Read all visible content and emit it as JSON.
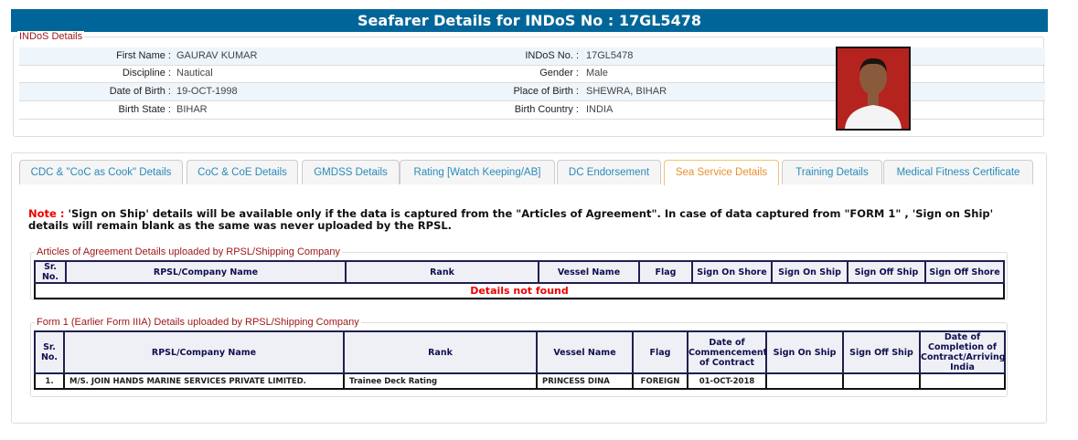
{
  "header": {
    "title": "Seafarer Details for INDoS No : 17GL5478"
  },
  "indos": {
    "legend": "INDoS Details",
    "rows": [
      {
        "l1": "First Name :",
        "v1": "GAURAV KUMAR",
        "l2": "INDoS No. :",
        "v2": "17GL5478"
      },
      {
        "l1": "Discipline :",
        "v1": "Nautical",
        "l2": "Gender :",
        "v2": "Male"
      },
      {
        "l1": "Date of Birth :",
        "v1": "19-OCT-1998",
        "l2": "Place of Birth :",
        "v2": "SHEWRA, BIHAR"
      },
      {
        "l1": "Birth State :",
        "v1": "BIHAR",
        "l2": "Birth Country :",
        "v2": "INDIA"
      }
    ]
  },
  "tabs": [
    "CDC & \"CoC as Cook\" Details",
    "CoC & CoE Details",
    "GMDSS Details",
    "Rating [Watch Keeping/AB]",
    "DC Endorsement",
    "Sea Service Details",
    "Training Details",
    "Medical Fitness Certificate"
  ],
  "active_tab": "Sea Service Details",
  "note": {
    "label": "Note :",
    "text": " 'Sign on Ship' details will be available only if the data is captured from the \"Articles of Agreement\". In case of data captured from \"FORM 1\" , 'Sign on Ship' details will remain blank as the same was never uploaded by the RPSL."
  },
  "articles": {
    "legend": "Articles of Agreement Details uploaded by RPSL/Shipping Company",
    "headers": [
      "Sr. No.",
      "RPSL/Company Name",
      "Rank",
      "Vessel Name",
      "Flag",
      "Sign On Shore",
      "Sign On Ship",
      "Sign Off Ship",
      "Sign Off Shore"
    ],
    "empty": "Details not found"
  },
  "form1": {
    "legend": "Form 1 (Earlier Form IIIA) Details uploaded by RPSL/Shipping Company",
    "headers": [
      "Sr. No.",
      "RPSL/Company Name",
      "Rank",
      "Vessel Name",
      "Flag",
      "Date of Commencement of Contract",
      "Sign On Ship",
      "Sign Off Ship",
      "Date of Completion of Contract/Arriving India"
    ],
    "rows": [
      [
        "1.",
        "M/S. JOIN HANDS MARINE SERVICES PRIVATE LIMITED.",
        "Trainee Deck Rating",
        "PRINCESS DINA",
        "FOREIGN",
        "01-OCT-2018",
        "",
        "",
        ""
      ]
    ]
  }
}
